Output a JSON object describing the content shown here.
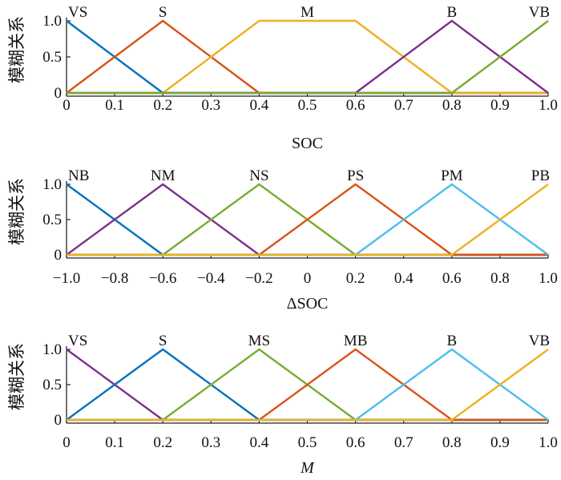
{
  "chart_data": [
    {
      "type": "line",
      "xlabel": "SOC",
      "ylabel": "模糊关系",
      "xlim": [
        0,
        1
      ],
      "ylim": [
        0,
        1
      ],
      "xticks": [
        0,
        0.1,
        0.2,
        0.3,
        0.4,
        0.5,
        0.6,
        0.7,
        0.8,
        0.9,
        1.0
      ],
      "xtick_labels": [
        "0",
        "0.1",
        "0.2",
        "0.3",
        "0.4",
        "0.5",
        "0.6",
        "0.7",
        "0.8",
        "0.9",
        "1.0"
      ],
      "yticks": [
        0,
        0.5,
        1.0
      ],
      "ytick_labels": [
        "0",
        "0.5",
        "1.0"
      ],
      "series": [
        {
          "name": "VS",
          "color": "#0072bd",
          "x": [
            0,
            0.2,
            1.0
          ],
          "y": [
            1,
            0,
            0
          ]
        },
        {
          "name": "S",
          "color": "#d95319",
          "x": [
            0,
            0.2,
            0.4,
            1.0
          ],
          "y": [
            0,
            1,
            0,
            0
          ]
        },
        {
          "name": "M",
          "color": "#edb120",
          "x": [
            0,
            0.2,
            0.4,
            0.6,
            0.8,
            1.0
          ],
          "y": [
            0,
            0,
            1,
            1,
            0,
            0
          ]
        },
        {
          "name": "B",
          "color": "#7e2f8e",
          "x": [
            0,
            0.6,
            0.8,
            1.0
          ],
          "y": [
            0,
            0,
            1,
            0
          ]
        },
        {
          "name": "VB",
          "color": "#77ac30",
          "x": [
            0,
            0.8,
            1.0
          ],
          "y": [
            0,
            0,
            1
          ]
        }
      ]
    },
    {
      "type": "line",
      "xlabel": "ΔSOC",
      "ylabel": "模糊关系",
      "xlim": [
        -1,
        1
      ],
      "ylim": [
        0,
        1
      ],
      "xticks": [
        -1,
        -0.8,
        -0.6,
        -0.4,
        -0.2,
        0,
        0.2,
        0.4,
        0.6,
        0.8,
        1.0
      ],
      "xtick_labels": [
        "−1.0",
        "−0.8",
        "−0.6",
        "−0.4",
        "−0.2",
        "0",
        "0.2",
        "0.4",
        "0.6",
        "0.8",
        "1.0"
      ],
      "yticks": [
        0,
        0.5,
        1.0
      ],
      "ytick_labels": [
        "0",
        "0.5",
        "1.0"
      ],
      "series": [
        {
          "name": "NB",
          "color": "#0072bd",
          "x": [
            -1,
            -0.6,
            1.0
          ],
          "y": [
            1,
            0,
            0
          ]
        },
        {
          "name": "NM",
          "color": "#7e2f8e",
          "x": [
            -1,
            -0.6,
            -0.2,
            1.0
          ],
          "y": [
            0,
            1,
            0,
            0
          ]
        },
        {
          "name": "NS",
          "color": "#77ac30",
          "x": [
            -1,
            -0.6,
            -0.2,
            0.2,
            1.0
          ],
          "y": [
            0,
            0,
            1,
            0,
            0
          ]
        },
        {
          "name": "PS",
          "color": "#d95319",
          "x": [
            -1,
            -0.2,
            0.2,
            0.6,
            1.0
          ],
          "y": [
            0,
            0,
            1,
            0,
            0
          ]
        },
        {
          "name": "PM",
          "color": "#4dbeee",
          "x": [
            -1,
            0.2,
            0.6,
            1.0
          ],
          "y": [
            0,
            0,
            1,
            0
          ]
        },
        {
          "name": "PB",
          "color": "#edb120",
          "x": [
            -1,
            0.6,
            1.0
          ],
          "y": [
            0,
            0,
            1
          ]
        }
      ]
    },
    {
      "type": "line",
      "xlabel": "M",
      "xlabel_italic": true,
      "ylabel": "模糊关系",
      "xlim": [
        0,
        1
      ],
      "ylim": [
        0,
        1
      ],
      "xticks": [
        0,
        0.1,
        0.2,
        0.3,
        0.4,
        0.5,
        0.6,
        0.7,
        0.8,
        0.9,
        1.0
      ],
      "xtick_labels": [
        "0",
        "0.1",
        "0.2",
        "0.3",
        "0.4",
        "0.5",
        "0.6",
        "0.7",
        "0.8",
        "0.9",
        "1.0"
      ],
      "yticks": [
        0,
        0.5,
        1.0
      ],
      "ytick_labels": [
        "0",
        "0.5",
        "1.0"
      ],
      "series": [
        {
          "name": "VS",
          "color": "#7e2f8e",
          "x": [
            0,
            0.2,
            1.0
          ],
          "y": [
            1,
            0,
            0
          ]
        },
        {
          "name": "S",
          "color": "#0072bd",
          "x": [
            0,
            0.2,
            0.4,
            1.0
          ],
          "y": [
            0,
            1,
            0,
            0
          ]
        },
        {
          "name": "MS",
          "color": "#77ac30",
          "x": [
            0,
            0.2,
            0.4,
            0.6,
            1.0
          ],
          "y": [
            0,
            0,
            1,
            0,
            0
          ]
        },
        {
          "name": "MB",
          "color": "#d95319",
          "x": [
            0,
            0.4,
            0.6,
            0.8,
            1.0
          ],
          "y": [
            0,
            0,
            1,
            0,
            0
          ]
        },
        {
          "name": "B",
          "color": "#4dbeee",
          "x": [
            0,
            0.6,
            0.8,
            1.0
          ],
          "y": [
            0,
            0,
            1,
            0
          ]
        },
        {
          "name": "VB",
          "color": "#edb120",
          "x": [
            0,
            0.8,
            1.0
          ],
          "y": [
            0,
            0,
            1
          ]
        }
      ]
    }
  ]
}
